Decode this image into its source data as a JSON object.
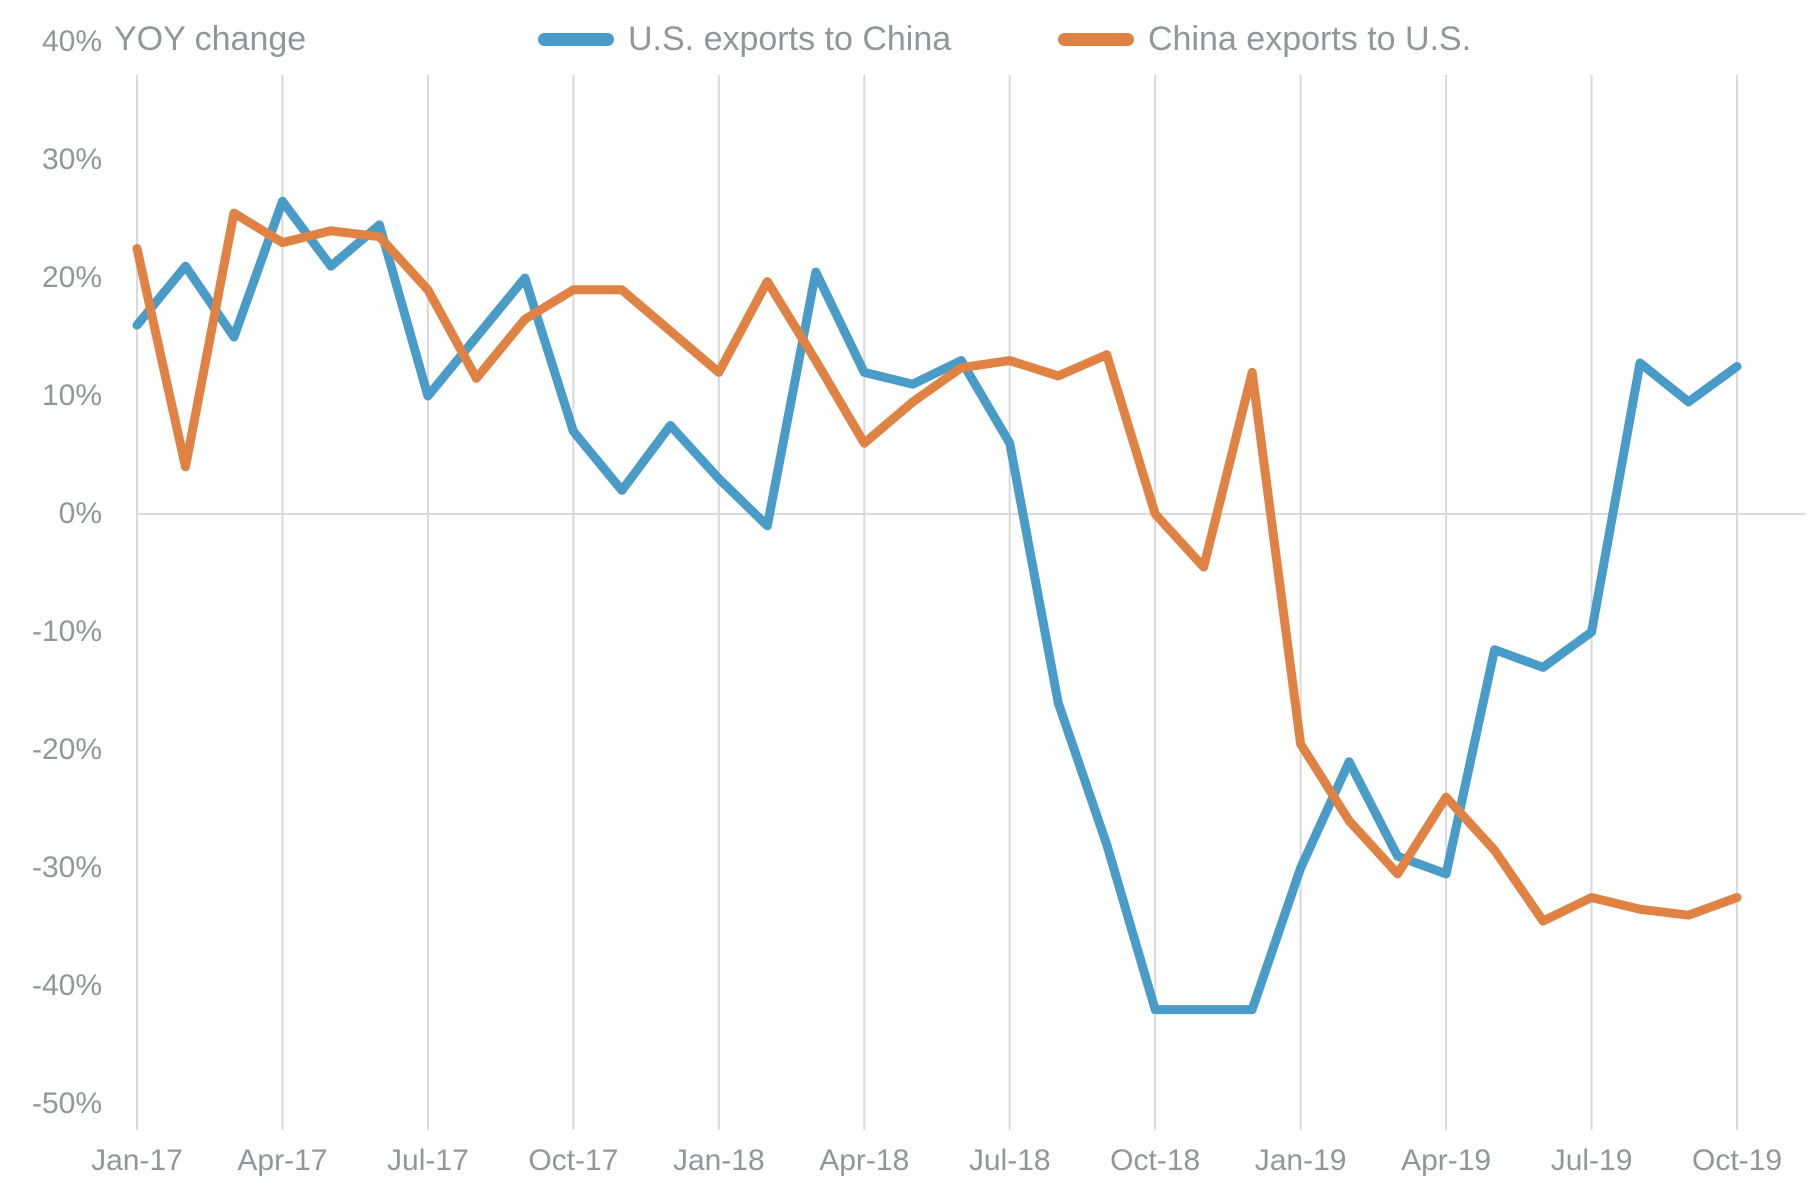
{
  "title": "YOY change",
  "legend": [
    {
      "label": "U.S. exports to China",
      "color": "#4A9CC8"
    },
    {
      "label": "China exports to U.S.",
      "color": "#E08244"
    }
  ],
  "axes": {
    "y_tick_labels": [
      "40%",
      "30%",
      "20%",
      "10%",
      "0%",
      "-10%",
      "-20%",
      "-30%",
      "-40%",
      "-50%"
    ],
    "y_tick_values": [
      40,
      30,
      20,
      10,
      0,
      -10,
      -20,
      -30,
      -40,
      -50
    ],
    "x_tick_labels": [
      "Jan-17",
      "Apr-17",
      "Jul-17",
      "Oct-17",
      "Jan-18",
      "Apr-18",
      "Jul-18",
      "Oct-18",
      "Jan-19",
      "Apr-19",
      "Jul-19",
      "Oct-19"
    ]
  },
  "chart_data": {
    "type": "line",
    "title": "YOY change",
    "x": [
      "Jan-17",
      "Feb-17",
      "Mar-17",
      "Apr-17",
      "May-17",
      "Jun-17",
      "Jul-17",
      "Aug-17",
      "Sep-17",
      "Oct-17",
      "Nov-17",
      "Dec-17",
      "Jan-18",
      "Feb-18",
      "Mar-18",
      "Apr-18",
      "May-18",
      "Jun-18",
      "Jul-18",
      "Aug-18",
      "Sep-18",
      "Oct-18",
      "Nov-18",
      "Dec-18",
      "Jan-19",
      "Feb-19",
      "Mar-19",
      "Apr-19",
      "May-19",
      "Jun-19",
      "Jul-19",
      "Aug-19",
      "Sep-19",
      "Oct-19"
    ],
    "series": [
      {
        "name": "U.S. exports to China",
        "color": "#4A9CC8",
        "values": [
          16,
          21,
          15,
          26.5,
          21,
          24.5,
          10,
          15,
          20,
          7,
          2,
          7.5,
          3,
          -1,
          20.5,
          12,
          11,
          13,
          6,
          -16,
          -28,
          -42,
          -42,
          -42,
          -30,
          -21,
          -29,
          -30.5,
          -11.5,
          -13,
          -10,
          12.8,
          9.5,
          12.5
        ]
      },
      {
        "name": "China exports to U.S.",
        "color": "#E08244",
        "values": [
          22.5,
          4,
          25.5,
          23,
          24,
          23.5,
          19,
          11.5,
          16.5,
          19,
          19,
          15.5,
          12,
          19.7,
          13,
          6,
          9.5,
          12.4,
          13,
          11.7,
          13.5,
          0,
          -4.5,
          12,
          -19.5,
          -26,
          -30.5,
          -24,
          -28.5,
          -34.5,
          -32.5,
          -33.5,
          -34,
          -32.5
        ]
      }
    ],
    "xlabel": "",
    "ylabel": "YOY change",
    "ylim": [
      -50,
      40
    ],
    "x_tick_step_months": 3,
    "grid": {
      "vertical": "quarterly",
      "horizontal": "zero line only"
    },
    "legend_position": "top-center"
  },
  "colors": {
    "text": "#8E989A",
    "grid": "#D9D9D9",
    "background": "#FFFFFF"
  }
}
